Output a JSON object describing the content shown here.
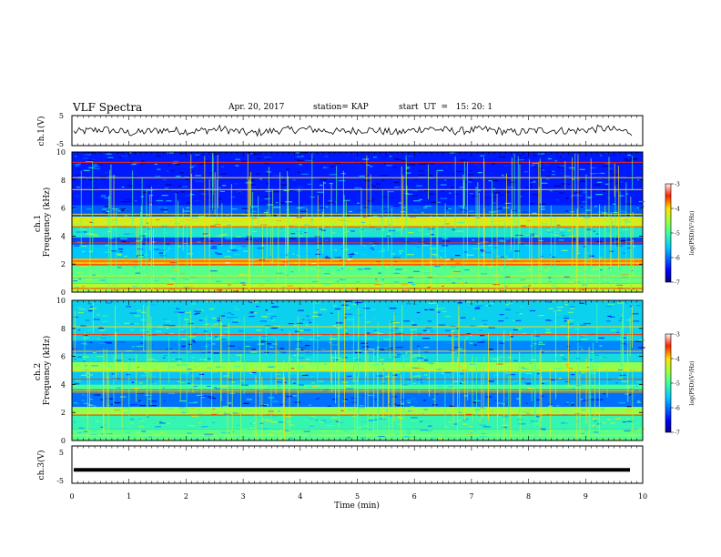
{
  "header": {
    "title": "VLF Spectra",
    "date": "Apr. 20, 2017",
    "station": "station= KAP",
    "start": "start  UT  =   15: 20: 1"
  },
  "chart_data": [
    {
      "type": "line",
      "panel": "ch1-waveform",
      "ylabel": "ch.1(V)",
      "ylim": [
        -5,
        5
      ],
      "yticks": [
        "5",
        "-5"
      ],
      "xlim": [
        0,
        10
      ],
      "series": [
        {
          "values": [
            -0.5,
            0.4,
            -0.8,
            0.2,
            -0.3,
            0.6,
            -0.9,
            0.1,
            0.5,
            -0.4,
            0.3,
            -0.7,
            0.8,
            -0.2,
            0.4,
            -0.6,
            0.2,
            -0.1,
            0.7,
            -0.5
          ]
        }
      ],
      "style": {
        "color": "#000000"
      }
    },
    {
      "type": "heatmap",
      "panel": "ch1-spectrogram",
      "ylabel": "ch.1\nFrequency (kHz)",
      "ylabel_lines": [
        "ch.1",
        "Frequency (kHz)"
      ],
      "yticks": [
        "0",
        "2",
        "4",
        "6",
        "8",
        "10"
      ],
      "ylim": [
        0,
        10
      ],
      "xlim": [
        0,
        10
      ],
      "colorbar": {
        "label": "log(PSD)(V²/Hz)",
        "ticks": [
          "-3",
          "-4",
          "-5",
          "-6",
          "-7"
        ],
        "range": [
          -7,
          -3
        ]
      },
      "bands": [
        {
          "f_low": 0.0,
          "f_high": 0.6,
          "level": -4.4
        },
        {
          "f_low": 0.6,
          "f_high": 1.0,
          "level": -4.8
        },
        {
          "f_low": 1.0,
          "f_high": 1.9,
          "level": -4.9
        },
        {
          "f_low": 1.9,
          "f_high": 2.4,
          "level": -3.9
        },
        {
          "f_low": 2.4,
          "f_high": 3.4,
          "level": -5.6
        },
        {
          "f_low": 3.4,
          "f_high": 3.9,
          "level": -6.2
        },
        {
          "f_low": 3.9,
          "f_high": 4.6,
          "level": -5.3
        },
        {
          "f_low": 4.6,
          "f_high": 5.4,
          "level": -4.3
        },
        {
          "f_low": 5.4,
          "f_high": 6.2,
          "level": -6.1
        },
        {
          "f_low": 6.2,
          "f_high": 10.0,
          "level": -6.4
        }
      ],
      "lines_khz": [
        0.3,
        1.2,
        2.0,
        2.25,
        3.55,
        4.7,
        5.1,
        5.25,
        5.6,
        7.35,
        8.2,
        9.3
      ]
    },
    {
      "type": "heatmap",
      "panel": "ch2-spectrogram",
      "ylabel": "ch.2\nFrequency (kHz)",
      "ylabel_lines": [
        "ch.2",
        "Frequency (kHz)"
      ],
      "yticks": [
        "0",
        "2",
        "4",
        "6",
        "8",
        "10"
      ],
      "ylim": [
        0,
        10
      ],
      "xlim": [
        0,
        10
      ],
      "colorbar": {
        "label": "log(PSD)(V²/Hz)",
        "ticks": [
          "-3",
          "-4",
          "-5",
          "-6",
          "-7"
        ],
        "range": [
          -7,
          -3
        ]
      },
      "bands": [
        {
          "f_low": 0.0,
          "f_high": 0.8,
          "level": -4.9
        },
        {
          "f_low": 0.8,
          "f_high": 1.8,
          "level": -5.1
        },
        {
          "f_low": 1.8,
          "f_high": 2.4,
          "level": -4.6
        },
        {
          "f_low": 2.4,
          "f_high": 3.4,
          "level": -6.0
        },
        {
          "f_low": 3.4,
          "f_high": 4.0,
          "level": -5.0
        },
        {
          "f_low": 4.0,
          "f_high": 4.9,
          "level": -5.6
        },
        {
          "f_low": 4.9,
          "f_high": 5.6,
          "level": -4.6
        },
        {
          "f_low": 5.6,
          "f_high": 6.2,
          "level": -5.4
        },
        {
          "f_low": 6.2,
          "f_high": 7.1,
          "level": -5.9
        },
        {
          "f_low": 7.1,
          "f_high": 10.0,
          "level": -5.5
        }
      ],
      "lines_khz": [
        0.4,
        1.85,
        3.5,
        3.65,
        4.4,
        5.0,
        6.4,
        7.6,
        8.15
      ]
    },
    {
      "type": "line",
      "panel": "ch3-waveform",
      "ylabel": "ch.3(V)",
      "ylim": [
        -5,
        5
      ],
      "yticks": [
        "5",
        "-5"
      ],
      "xlim": [
        0,
        10
      ],
      "xlabel": "Time  (min)",
      "xticks": [
        "0",
        "1",
        "2",
        "3",
        "4",
        "5",
        "6",
        "7",
        "8",
        "9",
        "10"
      ],
      "series": [
        {
          "values": [
            -1.4,
            -1.4
          ]
        }
      ],
      "style": {
        "color": "#000000"
      }
    }
  ]
}
